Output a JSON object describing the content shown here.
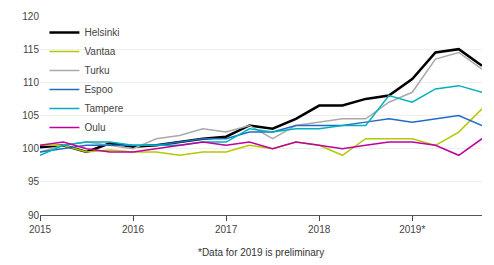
{
  "chart_data": {
    "type": "line",
    "categories": [
      "2015",
      null,
      null,
      null,
      "2016",
      null,
      null,
      null,
      "2017",
      null,
      null,
      null,
      "2018",
      null,
      null,
      null,
      "2019*",
      null,
      null,
      null
    ],
    "series": [
      {
        "name": "Helsinki",
        "color": "#000000",
        "values": [
          100.2,
          100.5,
          99.5,
          100.8,
          100.3,
          100.5,
          101.0,
          101.5,
          101.8,
          103.5,
          103.0,
          104.5,
          106.5,
          106.5,
          107.5,
          108.0,
          110.5,
          114.5,
          115.0,
          112.5
        ]
      },
      {
        "name": "Vantaa",
        "color": "#b5c900",
        "values": [
          100.5,
          100.5,
          99.5,
          99.8,
          99.5,
          99.5,
          99.0,
          99.5,
          99.5,
          100.5,
          100.0,
          101.0,
          100.5,
          99.0,
          101.5,
          101.5,
          101.5,
          100.5,
          102.5,
          106.0
        ]
      },
      {
        "name": "Turku",
        "color": "#aaaaaa",
        "values": [
          99.5,
          100.5,
          101.0,
          100.5,
          100.0,
          101.5,
          102.0,
          103.0,
          102.5,
          103.5,
          101.5,
          103.5,
          104.0,
          104.5,
          104.5,
          107.0,
          108.5,
          113.5,
          114.5,
          112.0
        ]
      },
      {
        "name": "Espoo",
        "color": "#1f6dc2",
        "values": [
          99.5,
          100.0,
          100.5,
          100.5,
          100.5,
          100.5,
          101.0,
          101.5,
          101.5,
          102.5,
          102.5,
          103.5,
          103.5,
          103.5,
          104.0,
          104.5,
          104.0,
          104.5,
          105.0,
          103.5
        ]
      },
      {
        "name": "Tampere",
        "color": "#00b0c0",
        "values": [
          99.0,
          100.5,
          101.0,
          101.0,
          100.5,
          100.5,
          100.5,
          101.0,
          101.0,
          103.0,
          102.5,
          103.0,
          103.0,
          103.5,
          103.5,
          108.0,
          107.0,
          109.0,
          109.5,
          108.5
        ]
      },
      {
        "name": "Oulu",
        "color": "#c000a0",
        "values": [
          100.5,
          101.0,
          100.0,
          99.5,
          99.5,
          100.0,
          100.5,
          101.0,
          100.5,
          101.0,
          100.0,
          101.0,
          100.5,
          100.0,
          100.5,
          101.0,
          101.0,
          100.5,
          99.0,
          101.5
        ]
      }
    ],
    "ylim": [
      90,
      120
    ],
    "yticks": [
      90,
      95,
      100,
      105,
      110,
      115,
      120
    ],
    "grid": true,
    "legend": "upper left",
    "annotations": [
      "*Data for 2019 is preliminary"
    ]
  }
}
